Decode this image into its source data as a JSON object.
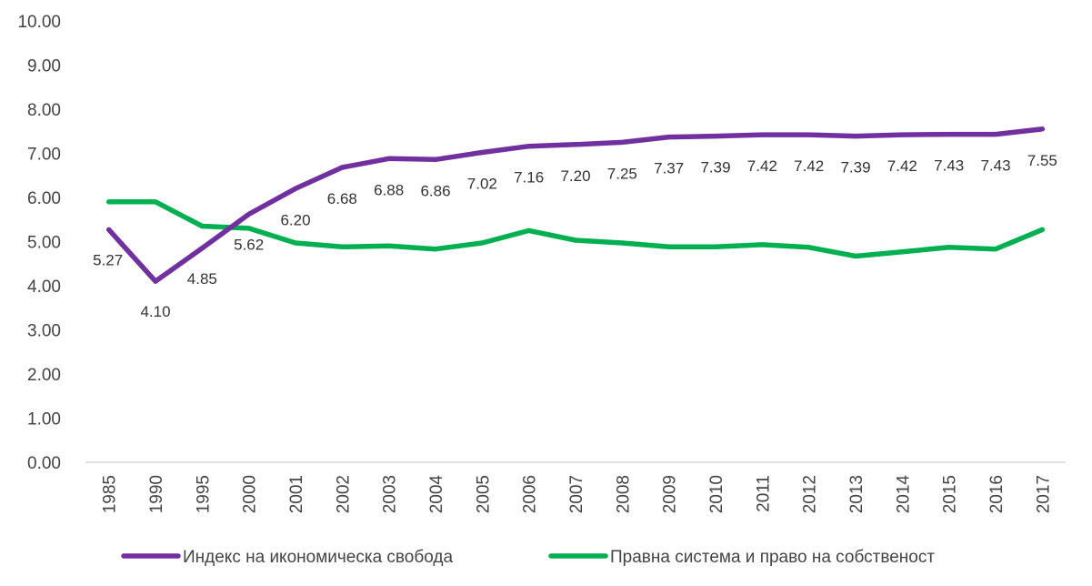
{
  "chart_data": {
    "type": "line",
    "categories": [
      "1985",
      "1990",
      "1995",
      "2000",
      "2001",
      "2002",
      "2003",
      "2004",
      "2005",
      "2006",
      "2007",
      "2008",
      "2009",
      "2010",
      "2011",
      "2012",
      "2013",
      "2014",
      "2015",
      "2016",
      "2017"
    ],
    "ylim": [
      0,
      10
    ],
    "ytick_labels": [
      "0.00",
      "1.00",
      "2.00",
      "3.00",
      "4.00",
      "5.00",
      "6.00",
      "7.00",
      "8.00",
      "9.00",
      "10.00"
    ],
    "grid": false,
    "legend_position": "bottom",
    "series": [
      {
        "name": "Индекс на икономическа свобода",
        "color": "#7030A0",
        "values": [
          5.27,
          4.1,
          4.85,
          5.62,
          6.2,
          6.68,
          6.88,
          6.86,
          7.02,
          7.16,
          7.2,
          7.25,
          7.37,
          7.39,
          7.42,
          7.42,
          7.39,
          7.42,
          7.43,
          7.43,
          7.55
        ],
        "data_labels": [
          "5.27",
          "4.10",
          "4.85",
          "5.62",
          "6.20",
          "6.68",
          "6.88",
          "6.86",
          "7.02",
          "7.16",
          "7.20",
          "7.25",
          "7.37",
          "7.39",
          "7.42",
          "7.42",
          "7.39",
          "7.42",
          "7.43",
          "7.43",
          "7.55"
        ]
      },
      {
        "name": "Правна система и право на собственост",
        "color": "#00B050",
        "values": [
          5.9,
          5.9,
          5.35,
          5.3,
          4.97,
          4.88,
          4.9,
          4.83,
          4.97,
          5.25,
          5.03,
          4.97,
          4.88,
          4.88,
          4.93,
          4.87,
          4.67,
          4.77,
          4.87,
          4.83,
          5.27
        ]
      }
    ]
  }
}
